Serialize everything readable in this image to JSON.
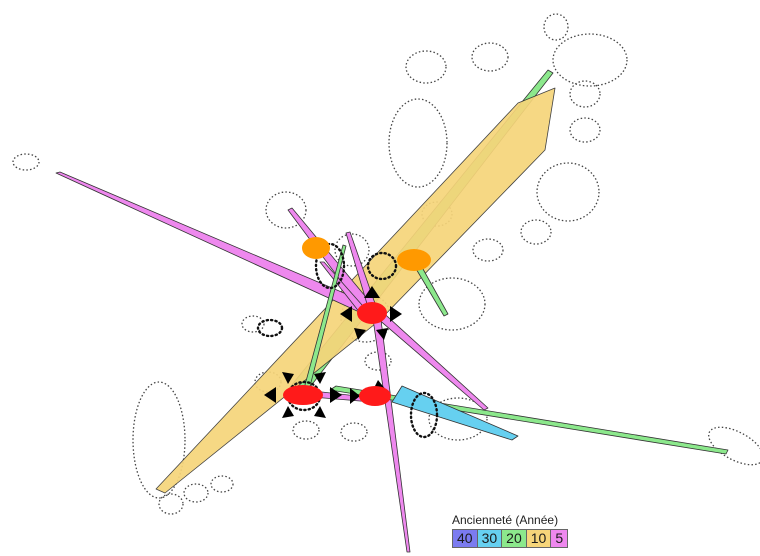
{
  "legend": {
    "title": "Ancienneté (Année)",
    "items": [
      {
        "label": "40",
        "color": "#7b7bf0"
      },
      {
        "label": "30",
        "color": "#66d0f0"
      },
      {
        "label": "20",
        "color": "#8ce88c"
      },
      {
        "label": "10",
        "color": "#f6d57a"
      },
      {
        "label": "5",
        "color": "#ee88ee"
      }
    ]
  },
  "colors": {
    "node_hub": "#ff1a1a",
    "node_secondary": "#ff9900",
    "wedge_20": "#8ce88c",
    "wedge_10": "#f6d57a",
    "wedge_5": "#ee88ee",
    "wedge_30": "#66d0f0",
    "outline": "#444444"
  }
}
